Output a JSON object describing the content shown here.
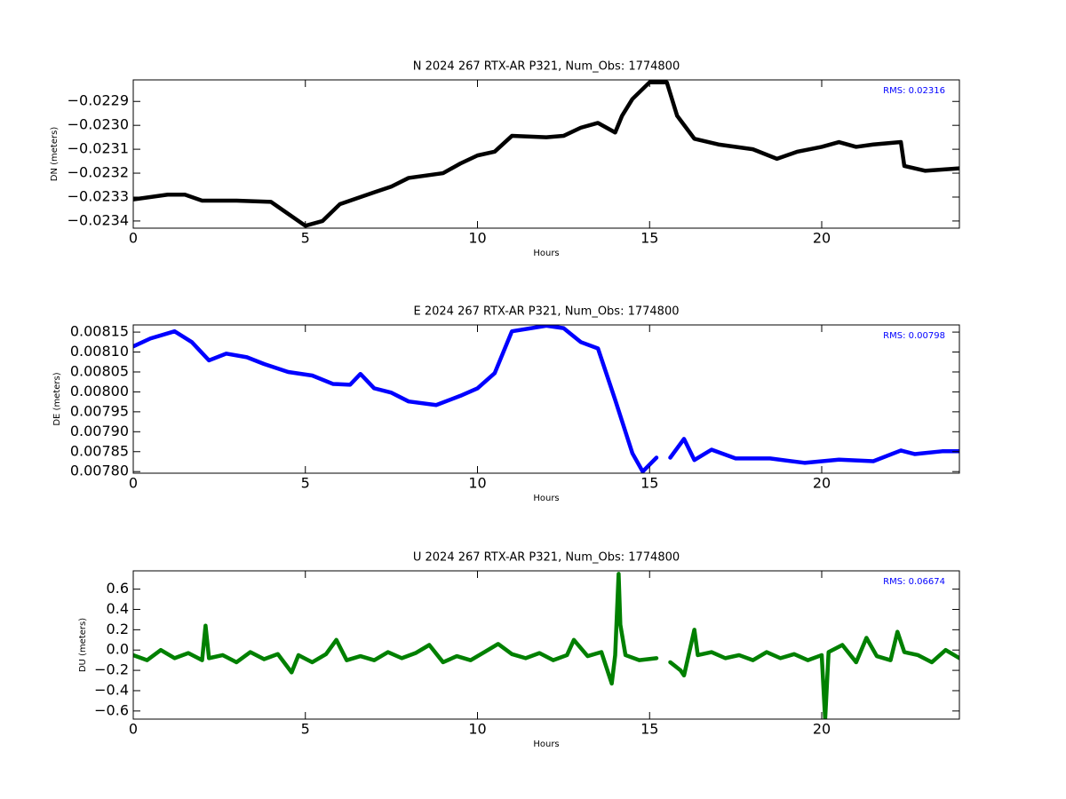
{
  "chart_data": [
    {
      "type": "line",
      "title": "N 2024 267 RTX-AR  P321, Num_Obs: 1774800",
      "x_label": "Hours",
      "y_label": "DN (meters)",
      "annotation": "RMS:  0.02316",
      "xlim": [
        0,
        24
      ],
      "xticks": [
        0,
        5,
        10,
        15,
        20
      ],
      "ylim": [
        -0.02343,
        -0.02281
      ],
      "yticks": [
        {
          "value": -0.0229,
          "label": "−0.0229"
        },
        {
          "value": -0.023,
          "label": "−0.0230"
        },
        {
          "value": -0.0231,
          "label": "−0.0231"
        },
        {
          "value": -0.0232,
          "label": "−0.0232"
        },
        {
          "value": -0.0233,
          "label": "−0.0233"
        },
        {
          "value": -0.0234,
          "label": "−0.0234"
        }
      ],
      "series": [
        {
          "name": "DN",
          "color": "#000000",
          "x": [
            0,
            1,
            1.5,
            2,
            3,
            4,
            4.5,
            5,
            5.5,
            6,
            7,
            7.5,
            8,
            9,
            9.5,
            10,
            10.5,
            11,
            12,
            12.5,
            13,
            13.5,
            14,
            14.2,
            14.5,
            15,
            15.5,
            15.8,
            16.3,
            17,
            18,
            18.7,
            19.3,
            20,
            20.5,
            21,
            21.5,
            22.3,
            22.4,
            23,
            24
          ],
          "values": [
            -0.02331,
            -0.02329,
            -0.02329,
            -0.023315,
            -0.023315,
            -0.02332,
            -0.02337,
            -0.02342,
            -0.0234,
            -0.02333,
            -0.02328,
            -0.023256,
            -0.02322,
            -0.0232,
            -0.02316,
            -0.023126,
            -0.02311,
            -0.023044,
            -0.02305,
            -0.023044,
            -0.02301,
            -0.02299,
            -0.02303,
            -0.02296,
            -0.02289,
            -0.02282,
            -0.02282,
            -0.02296,
            -0.023056,
            -0.02308,
            -0.0231,
            -0.02314,
            -0.02311,
            -0.02309,
            -0.02307,
            -0.02309,
            -0.02308,
            -0.02307,
            -0.02317,
            -0.02319,
            -0.02318
          ]
        }
      ]
    },
    {
      "type": "line",
      "title": "E 2024 267 RTX-AR  P321, Num_Obs: 1774800",
      "x_label": "Hours",
      "y_label": "DE (meters)",
      "annotation": "RMS:  0.00798",
      "xlim": [
        0,
        24
      ],
      "xticks": [
        0,
        5,
        10,
        15,
        20
      ],
      "ylim": [
        0.007796,
        0.008168
      ],
      "yticks": [
        {
          "value": 0.00815,
          "label": "0.00815"
        },
        {
          "value": 0.0081,
          "label": "0.00810"
        },
        {
          "value": 0.00805,
          "label": "0.00805"
        },
        {
          "value": 0.008,
          "label": "0.00800"
        },
        {
          "value": 0.00795,
          "label": "0.00795"
        },
        {
          "value": 0.0079,
          "label": "0.00790"
        },
        {
          "value": 0.00785,
          "label": "0.00785"
        },
        {
          "value": 0.0078,
          "label": "0.00780"
        }
      ],
      "series": [
        {
          "name": "DE",
          "color": "#0000ff",
          "x": [
            0,
            0.5,
            1.2,
            1.7,
            2.2,
            2.7,
            3.3,
            3.8,
            4.5,
            5.2,
            5.8,
            6.3,
            6.6,
            7,
            7.5,
            8,
            8.8,
            9.5,
            10,
            10.5,
            11,
            12,
            12.5,
            13,
            13.5,
            14,
            14.5,
            14.8,
            15.2,
            15.4,
            15.6,
            16,
            16.3,
            16.8,
            17.5,
            18.5,
            19.5,
            20.5,
            21.5,
            22.3,
            22.7,
            23.5,
            24
          ],
          "values": [
            0.008114,
            0.008134,
            0.008152,
            0.008125,
            0.008079,
            0.008096,
            0.008087,
            0.00807,
            0.00805,
            0.008041,
            0.00802,
            0.008018,
            0.008045,
            0.008009,
            0.007998,
            0.007976,
            0.007967,
            0.00799,
            0.008009,
            0.008047,
            0.008152,
            0.008166,
            0.00816,
            0.008125,
            0.008109,
            0.00798,
            0.007846,
            0.0078,
            0.007835,
            null,
            0.007835,
            0.007882,
            0.007829,
            0.007855,
            0.007833,
            0.007833,
            0.007822,
            0.00783,
            0.007826,
            0.007853,
            0.007844,
            0.007851,
            0.007851
          ]
        }
      ]
    },
    {
      "type": "line",
      "title": "U 2024 267 RTX-AR  P321, Num_Obs: 1774800",
      "x_label": "Hours",
      "y_label": "DU (meters)",
      "annotation": "RMS:  0.06674",
      "xlim": [
        0,
        24
      ],
      "xticks": [
        0,
        5,
        10,
        15,
        20
      ],
      "ylim": [
        -0.68,
        0.78
      ],
      "yticks": [
        {
          "value": 0.6,
          "label": "0.6"
        },
        {
          "value": 0.4,
          "label": "0.4"
        },
        {
          "value": 0.2,
          "label": "0.2"
        },
        {
          "value": 0,
          "label": "0.0"
        },
        {
          "value": -0.2,
          "label": "−0.2"
        },
        {
          "value": -0.4,
          "label": "−0.4"
        },
        {
          "value": -0.6,
          "label": "−0.6"
        }
      ],
      "series": [
        {
          "name": "DU",
          "color": "#008000",
          "x": [
            0,
            0.4,
            0.8,
            1.2,
            1.6,
            2.0,
            2.1,
            2.2,
            2.6,
            3.0,
            3.4,
            3.8,
            4.2,
            4.6,
            4.8,
            5.2,
            5.6,
            5.9,
            6.2,
            6.6,
            7.0,
            7.4,
            7.8,
            8.2,
            8.6,
            9.0,
            9.4,
            9.8,
            10.2,
            10.6,
            11.0,
            11.4,
            11.8,
            12.2,
            12.6,
            12.8,
            13.2,
            13.6,
            13.9,
            14.0,
            14.1,
            14.15,
            14.3,
            14.7,
            15.2,
            15.4,
            15.6,
            15.9,
            16.0,
            16.3,
            16.4,
            16.8,
            17.2,
            17.6,
            18.0,
            18.4,
            18.8,
            19.2,
            19.6,
            20.0,
            20.1,
            20.2,
            20.6,
            21.0,
            21.3,
            21.6,
            22.0,
            22.2,
            22.4,
            22.8,
            23.2,
            23.6,
            24
          ],
          "values": [
            -0.05,
            -0.1,
            0.0,
            -0.08,
            -0.03,
            -0.1,
            0.24,
            -0.08,
            -0.05,
            -0.12,
            -0.02,
            -0.09,
            -0.04,
            -0.22,
            -0.05,
            -0.12,
            -0.04,
            0.1,
            -0.1,
            -0.06,
            -0.1,
            -0.02,
            -0.08,
            -0.03,
            0.05,
            -0.12,
            -0.06,
            -0.1,
            -0.02,
            0.06,
            -0.04,
            -0.08,
            -0.03,
            -0.1,
            -0.05,
            0.1,
            -0.06,
            -0.02,
            -0.33,
            -0.05,
            0.75,
            0.25,
            -0.05,
            -0.1,
            -0.08,
            null,
            -0.12,
            -0.2,
            -0.25,
            0.2,
            -0.05,
            -0.02,
            -0.08,
            -0.05,
            -0.1,
            -0.02,
            -0.08,
            -0.04,
            -0.1,
            -0.05,
            -0.68,
            -0.02,
            0.05,
            -0.12,
            0.12,
            -0.06,
            -0.1,
            0.18,
            -0.02,
            -0.05,
            -0.12,
            0.0,
            -0.08
          ]
        }
      ]
    }
  ]
}
